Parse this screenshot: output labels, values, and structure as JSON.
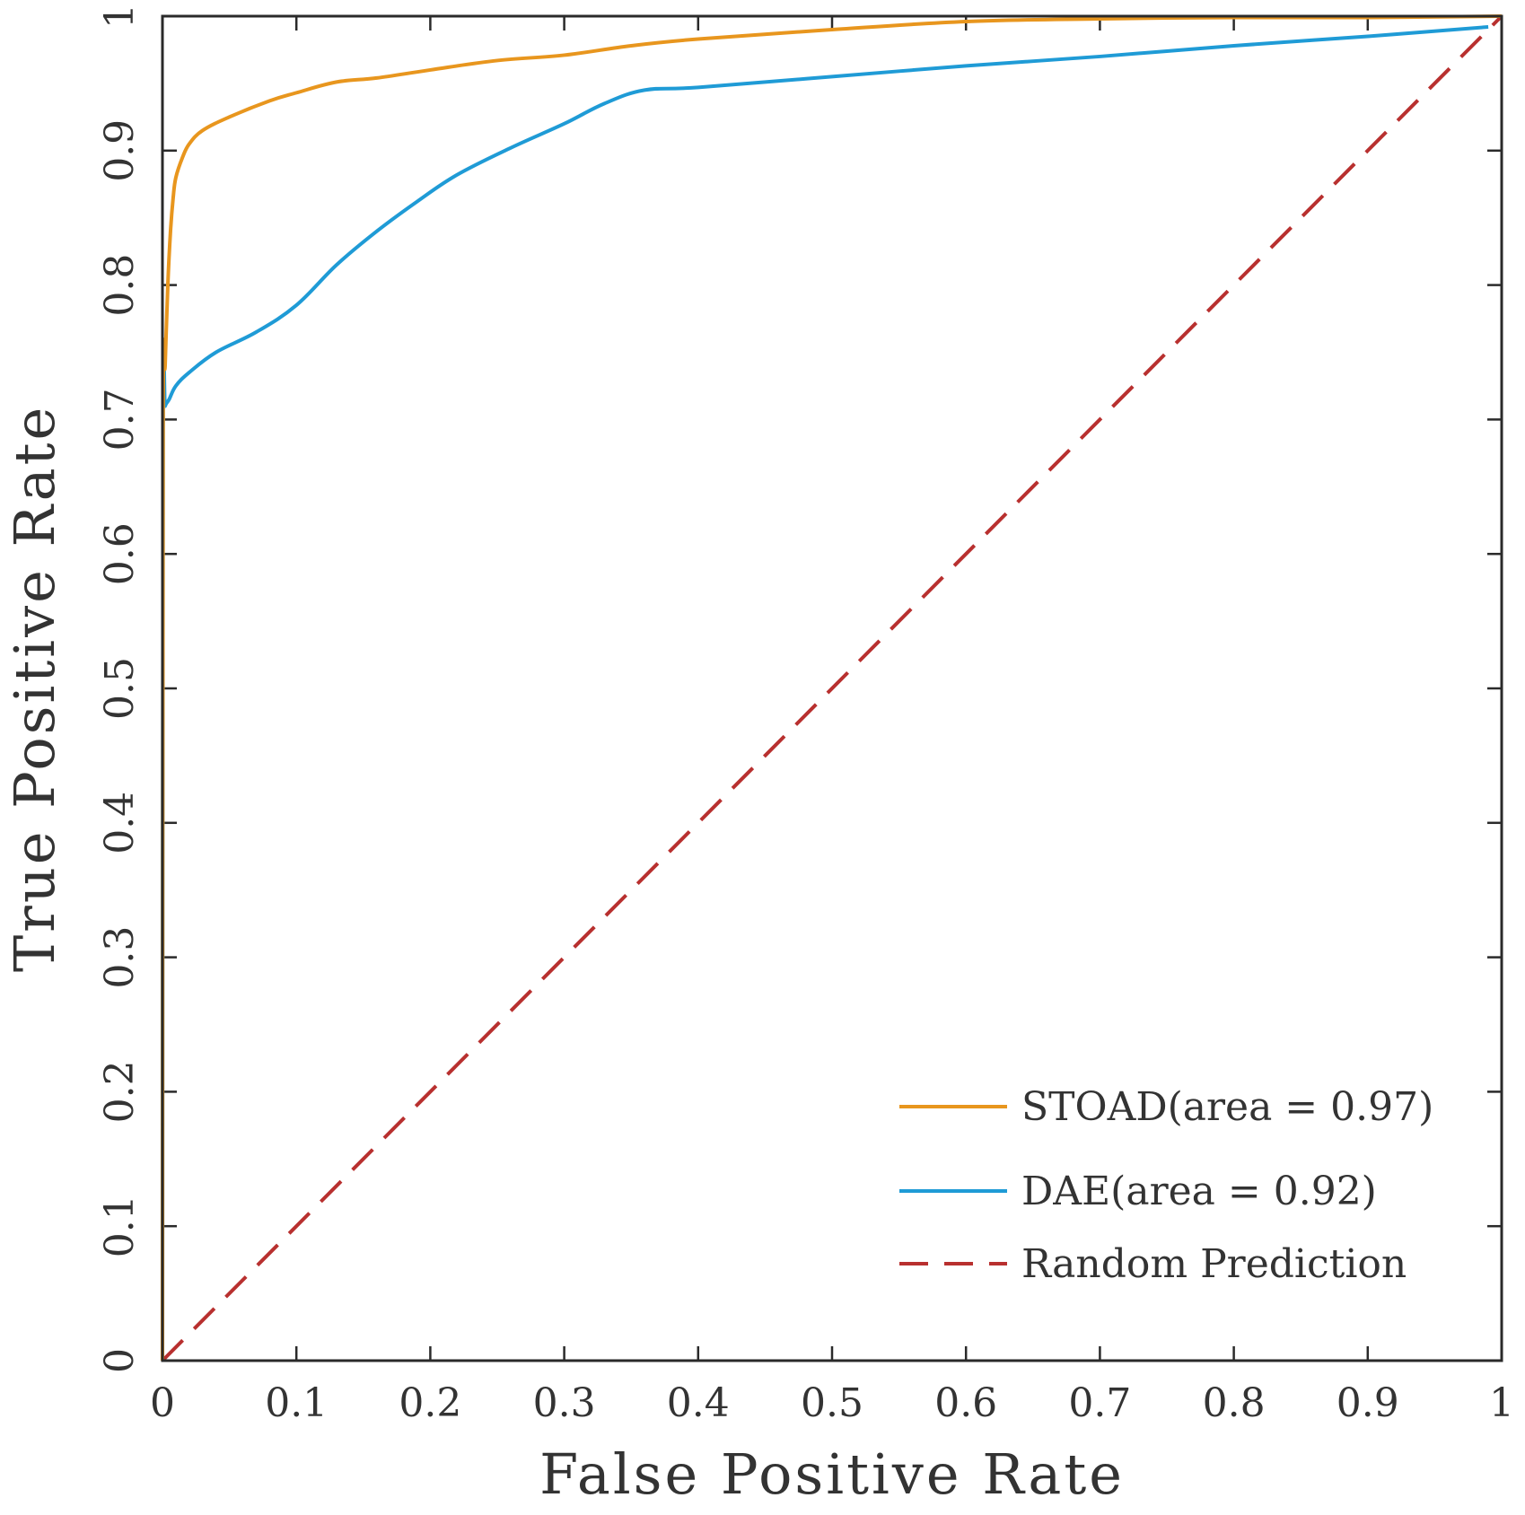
{
  "chart_data": {
    "type": "line",
    "title": "",
    "xlabel": "False Positive Rate",
    "ylabel": "True Positive Rate",
    "xlim": [
      0,
      1
    ],
    "ylim": [
      0,
      1
    ],
    "x_ticks": [
      0,
      0.1,
      0.2,
      0.3,
      0.4,
      0.5,
      0.6,
      0.7,
      0.8,
      0.9,
      1
    ],
    "x_tick_labels": [
      "0",
      "0.1",
      "0.2",
      "0.3",
      "0.4",
      "0.5",
      "0.6",
      "0.7",
      "0.8",
      "0.9",
      "1"
    ],
    "y_ticks": [
      0,
      0.1,
      0.2,
      0.3,
      0.4,
      0.5,
      0.6,
      0.7,
      0.8,
      0.9,
      1
    ],
    "y_tick_labels": [
      "0",
      "0.1",
      "0.2",
      "0.3",
      "0.4",
      "0.5",
      "0.6",
      "0.7",
      "0.8",
      "0.9",
      "1"
    ],
    "grid": false,
    "legend_position": "bottom-right",
    "series": [
      {
        "name": "STOAD",
        "label": "STOAD(area = 0.97)",
        "color": "#e8961e",
        "style": "solid",
        "x": [
          0,
          0.0005,
          0.002,
          0.004,
          0.006,
          0.008,
          0.01,
          0.015,
          0.02,
          0.03,
          0.05,
          0.08,
          0.1,
          0.13,
          0.16,
          0.2,
          0.25,
          0.3,
          0.35,
          0.4,
          0.5,
          0.6,
          0.7,
          0.8,
          0.9,
          1.0
        ],
        "y": [
          0,
          0.69,
          0.74,
          0.8,
          0.84,
          0.865,
          0.88,
          0.895,
          0.905,
          0.915,
          0.925,
          0.937,
          0.943,
          0.951,
          0.954,
          0.96,
          0.967,
          0.971,
          0.978,
          0.983,
          0.99,
          0.996,
          0.998,
          0.999,
          0.999,
          1.0
        ]
      },
      {
        "name": "DAE",
        "label": "DAE(area = 0.92)",
        "color": "#1f9bd6",
        "style": "solid",
        "x": [
          0,
          0.0005,
          0.002,
          0.005,
          0.01,
          0.02,
          0.04,
          0.07,
          0.1,
          0.13,
          0.16,
          0.19,
          0.22,
          0.26,
          0.3,
          0.33,
          0.36,
          0.4,
          0.5,
          0.6,
          0.7,
          0.8,
          0.9,
          0.99
        ],
        "y": [
          0,
          0.7,
          0.71,
          0.715,
          0.725,
          0.735,
          0.75,
          0.765,
          0.785,
          0.815,
          0.84,
          0.862,
          0.882,
          0.902,
          0.92,
          0.935,
          0.945,
          0.947,
          0.955,
          0.963,
          0.97,
          0.978,
          0.985,
          0.992
        ]
      },
      {
        "name": "Random Prediction",
        "label": "Random Prediction",
        "color": "#b8302f",
        "style": "dashed",
        "x": [
          0,
          1
        ],
        "y": [
          0,
          1
        ]
      }
    ]
  }
}
